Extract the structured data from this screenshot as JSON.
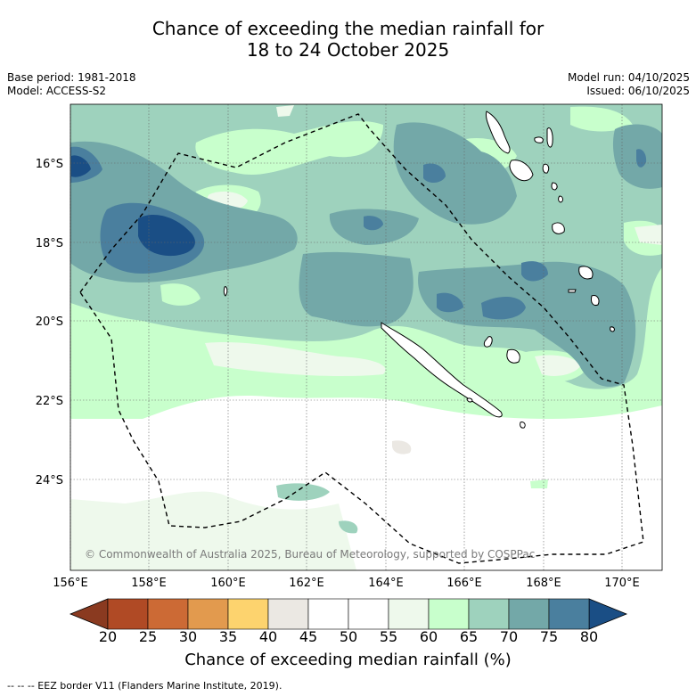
{
  "title": {
    "line1": "Chance of exceeding the median rainfall for",
    "line2": "18 to 24 October 2025"
  },
  "meta": {
    "base_period": "Base period: 1981-2018",
    "model": "Model: ACCESS-S2",
    "model_run": "Model run: 04/10/2025",
    "issued": "Issued: 06/10/2025"
  },
  "map": {
    "lat_labels": [
      "16°S",
      "18°S",
      "20°S",
      "22°S",
      "24°S"
    ],
    "lon_labels": [
      "156°E",
      "158°E",
      "160°E",
      "162°E",
      "164°E",
      "166°E",
      "168°E",
      "170°E"
    ],
    "copyright": "© Commonwealth of Australia 2025, Bureau of Meteorology, supported by COSPPac"
  },
  "colorbar": {
    "ticks": [
      "20",
      "25",
      "30",
      "35",
      "40",
      "45",
      "50",
      "55",
      "60",
      "65",
      "70",
      "75",
      "80"
    ],
    "colors": [
      "#b04a25",
      "#cc6a35",
      "#e29a4e",
      "#fdd36e",
      "#ebe8e3",
      "#ffffff",
      "#ffffff",
      "#eef9ec",
      "#c8ffcc",
      "#9ed2bd",
      "#73a8a8",
      "#4a7f9e"
    ],
    "low_extend_color": "#8a3a20",
    "high_extend_color": "#1a4e85",
    "label": "Chance of exceeding median rainfall (%)"
  },
  "footnote": "--  --  -- EEZ border V11 (Flanders Marine Institute, 2019)."
}
